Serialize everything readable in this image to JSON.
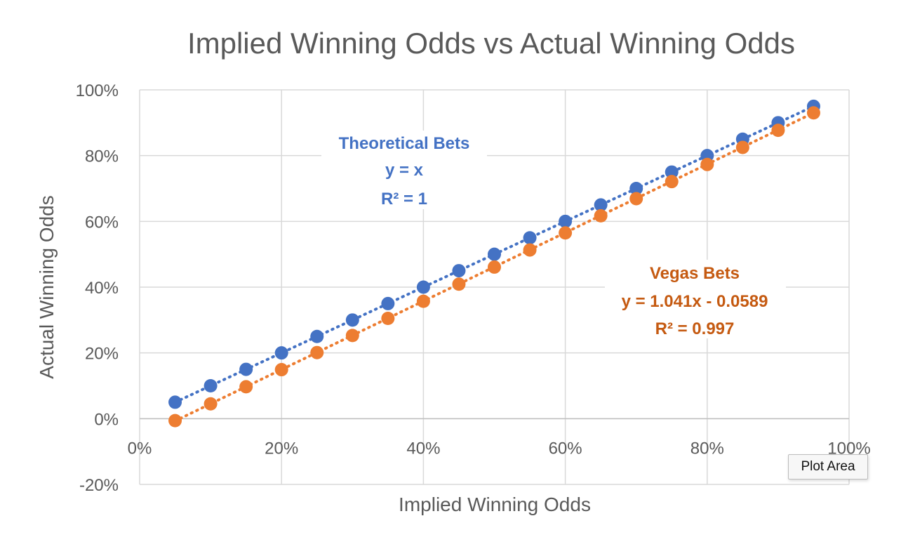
{
  "chart_data": {
    "type": "scatter",
    "title": "Implied Winning Odds vs Actual Winning Odds",
    "xlabel": "Implied Winning Odds",
    "ylabel": "Actual Winning Odds",
    "xlim": [
      0,
      1
    ],
    "ylim": [
      -0.2,
      1
    ],
    "x_ticks": [
      0,
      0.2,
      0.4,
      0.6,
      0.8,
      1
    ],
    "x_tick_labels": [
      "0%",
      "20%",
      "40%",
      "60%",
      "80%",
      "100%"
    ],
    "y_ticks": [
      -0.2,
      0,
      0.2,
      0.4,
      0.6,
      0.8,
      1
    ],
    "y_tick_labels": [
      "-20%",
      "0%",
      "20%",
      "40%",
      "60%",
      "80%",
      "100%"
    ],
    "grid": true,
    "legend": "none",
    "series": [
      {
        "color": "#4472C4",
        "trendline": {
          "slope": 1,
          "intercept": 0,
          "style": "dotted"
        },
        "x": [
          0.05,
          0.1,
          0.15,
          0.2,
          0.25,
          0.3,
          0.35,
          0.4,
          0.45,
          0.5,
          0.55,
          0.6,
          0.65,
          0.7,
          0.75,
          0.8,
          0.85,
          0.9,
          0.95
        ],
        "y": [
          0.05,
          0.1,
          0.15,
          0.2,
          0.25,
          0.3,
          0.35,
          0.4,
          0.45,
          0.5,
          0.55,
          0.6,
          0.65,
          0.7,
          0.75,
          0.8,
          0.85,
          0.9,
          0.95
        ]
      },
      {
        "color": "#ED7D31",
        "trendline": {
          "slope": 1.041,
          "intercept": -0.0589,
          "style": "dotted"
        },
        "x": [
          0.05,
          0.1,
          0.15,
          0.2,
          0.25,
          0.3,
          0.35,
          0.4,
          0.45,
          0.5,
          0.55,
          0.6,
          0.65,
          0.7,
          0.75,
          0.8,
          0.85,
          0.9,
          0.95
        ],
        "y": [
          -0.006,
          0.045,
          0.097,
          0.149,
          0.201,
          0.253,
          0.305,
          0.357,
          0.409,
          0.461,
          0.513,
          0.565,
          0.617,
          0.669,
          0.721,
          0.773,
          0.825,
          0.877,
          0.93
        ]
      }
    ],
    "annotations": [
      {
        "name": "Theoretical Bets",
        "equation": "y = x",
        "r2": "R² = 1",
        "color": "#4472C4"
      },
      {
        "name": "Vegas Bets",
        "equation": "y = 1.041x - 0.0589",
        "r2": "R² = 0.997",
        "color": "#C55A11"
      }
    ]
  },
  "tooltip": {
    "label": "Plot Area"
  }
}
